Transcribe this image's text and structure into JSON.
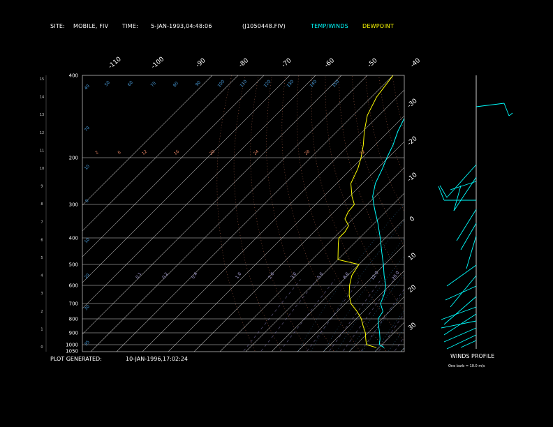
{
  "header": {
    "site_label": "SITE:",
    "site_value": "MOBILE, FIV",
    "time_label": "TIME:",
    "time_value": "5-JAN-1993,04:48:06",
    "file_id": "(J1050448.FIV)",
    "legend_temp_winds": "TEMP/WINDS",
    "legend_dewpoint": "DEWPOINT"
  },
  "footer": {
    "generated_label": "PLOT GENERATED:",
    "generated_value": "10-JAN-1996,17:02:24"
  },
  "winds_panel": {
    "title": "WINDS PROFILE",
    "note": "One barb = 10.0 m/s"
  },
  "colors": {
    "temp_winds": "#00ffff",
    "dewpoint": "#ffff00",
    "isobars": "#ffffff",
    "mixing_ratio": "#e08060",
    "saturation": "#4aa0e0"
  },
  "chart_data": {
    "type": "line",
    "title": "",
    "xlabel": "",
    "ylabel": "",
    "y_scale": "log-pressure",
    "pressure_levels": [
      400,
      300,
      200,
      1000,
      1050
    ],
    "pressure_ticks": [
      "400",
      "300",
      "200",
      "1000",
      "1050",
      "500",
      "600",
      "700",
      "800",
      "900"
    ],
    "height_ticks_km": [
      "15",
      "14",
      "13",
      "12",
      "11",
      "10",
      "9",
      "8",
      "7",
      "6",
      "5",
      "4",
      "3",
      "2",
      "1",
      "0"
    ],
    "top_isotherm_labels": [
      "-110",
      "-100",
      "-90",
      "-80",
      "-70",
      "-60",
      "-50",
      "-40"
    ],
    "right_isotherm_labels": [
      "-30",
      "-20",
      "-10",
      "0",
      "10",
      "20",
      "30"
    ],
    "mixing_ratio_labels": [
      "0.1",
      "0.2",
      "0.4",
      "1.0",
      "2.0",
      "3.0",
      "5.0",
      "8.0",
      "12.0",
      "20.0"
    ],
    "upper_labels": [
      "2",
      "6",
      "12",
      "16",
      "20",
      "24",
      "28",
      "32"
    ],
    "adiabat_labels": [
      "40",
      "50",
      "60",
      "70",
      "80",
      "90",
      "100",
      "110",
      "120",
      "130",
      "140",
      "150"
    ],
    "series": [
      {
        "name": "TEMP/WINDS",
        "points": [
          {
            "p": 1023,
            "t": 12.0
          },
          {
            "p": 1000,
            "t": 9.0
          },
          {
            "p": 950,
            "t": 7.0
          },
          {
            "p": 900,
            "t": 4.5
          },
          {
            "p": 850,
            "t": 1.5
          },
          {
            "p": 800,
            "t": -1.5
          },
          {
            "p": 750,
            "t": -2.5
          },
          {
            "p": 700,
            "t": -6.5
          },
          {
            "p": 650,
            "t": -8.5
          },
          {
            "p": 600,
            "t": -11.5
          },
          {
            "p": 550,
            "t": -16.0
          },
          {
            "p": 500,
            "t": -20.5
          },
          {
            "p": 450,
            "t": -26.0
          },
          {
            "p": 400,
            "t": -32.0
          },
          {
            "p": 350,
            "t": -39.0
          },
          {
            "p": 320,
            "t": -44.0
          },
          {
            "p": 300,
            "t": -47.5
          },
          {
            "p": 280,
            "t": -51.0
          },
          {
            "p": 250,
            "t": -55.0
          },
          {
            "p": 220,
            "t": -58.0
          },
          {
            "p": 200,
            "t": -60.5
          },
          {
            "p": 180,
            "t": -63.0
          },
          {
            "p": 160,
            "t": -66.5
          },
          {
            "p": 150,
            "t": -68.0
          },
          {
            "p": 130,
            "t": -71.5
          },
          {
            "p": 120,
            "t": -73.0
          },
          {
            "p": 110,
            "t": -72.0
          },
          {
            "p": 100,
            "t": -67.0
          }
        ]
      },
      {
        "name": "DEWPOINT",
        "points": [
          {
            "p": 1023,
            "t": 9.0
          },
          {
            "p": 1000,
            "t": 4.0
          },
          {
            "p": 950,
            "t": 1.5
          },
          {
            "p": 900,
            "t": -1.0
          },
          {
            "p": 850,
            "t": -4.5
          },
          {
            "p": 800,
            "t": -8.0
          },
          {
            "p": 750,
            "t": -12.5
          },
          {
            "p": 700,
            "t": -18.0
          },
          {
            "p": 650,
            "t": -22.0
          },
          {
            "p": 600,
            "t": -25.5
          },
          {
            "p": 550,
            "t": -28.5
          },
          {
            "p": 500,
            "t": -30.0
          },
          {
            "p": 480,
            "t": -40.0
          },
          {
            "p": 420,
            "t": -46.0
          },
          {
            "p": 400,
            "t": -48.0
          },
          {
            "p": 380,
            "t": -48.0
          },
          {
            "p": 360,
            "t": -49.0
          },
          {
            "p": 340,
            "t": -53.0
          },
          {
            "p": 320,
            "t": -54.5
          },
          {
            "p": 300,
            "t": -55.0
          },
          {
            "p": 280,
            "t": -59.0
          },
          {
            "p": 250,
            "t": -64.5
          },
          {
            "p": 220,
            "t": -67.5
          },
          {
            "p": 200,
            "t": -70.5
          },
          {
            "p": 180,
            "t": -74.5
          },
          {
            "p": 160,
            "t": -79.5
          },
          {
            "p": 140,
            "t": -84.5
          },
          {
            "p": 120,
            "t": -88.0
          },
          {
            "p": 100,
            "t": -90.0
          }
        ]
      }
    ]
  }
}
